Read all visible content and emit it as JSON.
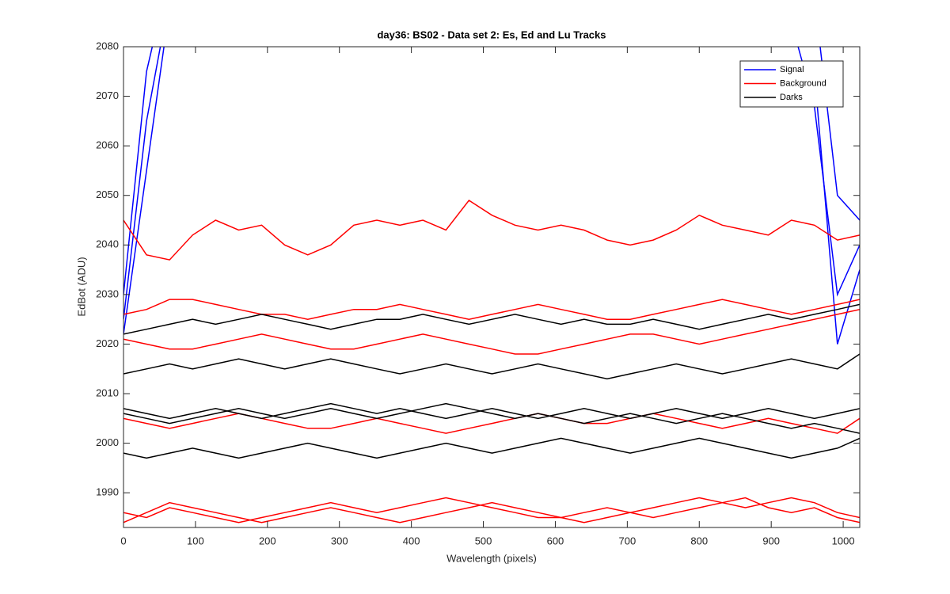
{
  "chart_data": {
    "type": "line",
    "title": "day36: BS02 - Data set 2: Es, Ed and Lu Tracks",
    "x_label": "Wavelength (pixels)",
    "y_label": "EdBot (ADU)",
    "x": [
      0,
      32,
      64,
      96,
      128,
      160,
      192,
      224,
      256,
      288,
      320,
      352,
      384,
      416,
      448,
      480,
      512,
      544,
      576,
      608,
      640,
      672,
      704,
      736,
      768,
      800,
      832,
      864,
      896,
      928,
      960,
      992,
      1023
    ],
    "xlim": [
      0,
      1023
    ],
    "ylim": [
      1983,
      2080
    ],
    "xticks": [
      0,
      100,
      200,
      300,
      400,
      500,
      600,
      700,
      800,
      900,
      1000
    ],
    "yticks": [
      1990,
      2000,
      2010,
      2020,
      2030,
      2040,
      2050,
      2060,
      2070,
      2080
    ],
    "legend_position": "upper right",
    "series": [
      {
        "name": "Signal",
        "color": "#0000ff",
        "lines": [
          [
            2025,
            2065,
            2090,
            null,
            null,
            null,
            null,
            null,
            null,
            null,
            null,
            null,
            null,
            null,
            null,
            null,
            null,
            null,
            null,
            null,
            null,
            null,
            null,
            null,
            null,
            null,
            null,
            null,
            null,
            2085,
            2068,
            2030,
            2040
          ],
          [
            2030,
            2075,
            2095,
            null,
            null,
            null,
            null,
            null,
            null,
            null,
            null,
            null,
            null,
            null,
            null,
            null,
            null,
            null,
            null,
            null,
            null,
            null,
            null,
            null,
            null,
            null,
            null,
            null,
            null,
            null,
            2090,
            2050,
            2045
          ],
          [
            2022,
            2055,
            2088,
            null,
            null,
            null,
            null,
            null,
            null,
            null,
            null,
            null,
            null,
            null,
            null,
            null,
            null,
            null,
            null,
            null,
            null,
            null,
            null,
            null,
            null,
            null,
            null,
            null,
            null,
            null,
            2075,
            2020,
            2035
          ]
        ]
      },
      {
        "name": "Background",
        "color": "#ff0000",
        "lines": [
          [
            2045,
            2038,
            2037,
            2042,
            2045,
            2043,
            2044,
            2040,
            2038,
            2040,
            2044,
            2045,
            2044,
            2045,
            2043,
            2049,
            2046,
            2044,
            2043,
            2044,
            2043,
            2041,
            2040,
            2041,
            2043,
            2046,
            2044,
            2043,
            2042,
            2045,
            2044,
            2041,
            2042
          ],
          [
            2026,
            2027,
            2029,
            2029,
            2028,
            2027,
            2026,
            2026,
            2025,
            2026,
            2027,
            2027,
            2028,
            2027,
            2026,
            2025,
            2026,
            2027,
            2028,
            2027,
            2026,
            2025,
            2025,
            2026,
            2027,
            2028,
            2029,
            2028,
            2027,
            2026,
            2027,
            2028,
            2029
          ],
          [
            2021,
            2020,
            2019,
            2019,
            2020,
            2021,
            2022,
            2021,
            2020,
            2019,
            2019,
            2020,
            2021,
            2022,
            2021,
            2020,
            2019,
            2018,
            2018,
            2019,
            2020,
            2021,
            2022,
            2022,
            2021,
            2020,
            2021,
            2022,
            2023,
            2024,
            2025,
            2026,
            2027
          ],
          [
            2005,
            2004,
            2003,
            2004,
            2005,
            2006,
            2005,
            2004,
            2003,
            2003,
            2004,
            2005,
            2004,
            2003,
            2002,
            2003,
            2004,
            2005,
            2006,
            2005,
            2004,
            2004,
            2005,
            2006,
            2005,
            2004,
            2003,
            2004,
            2005,
            2004,
            2003,
            2002,
            2005
          ],
          [
            1986,
            1985,
            1987,
            1986,
            1985,
            1984,
            1985,
            1986,
            1987,
            1988,
            1987,
            1986,
            1987,
            1988,
            1989,
            1988,
            1987,
            1986,
            1985,
            1985,
            1986,
            1987,
            1986,
            1987,
            1988,
            1989,
            1988,
            1987,
            1988,
            1989,
            1988,
            1986,
            1985
          ],
          [
            1984,
            1986,
            1988,
            1987,
            1986,
            1985,
            1984,
            1985,
            1986,
            1987,
            1986,
            1985,
            1984,
            1985,
            1986,
            1987,
            1988,
            1987,
            1986,
            1985,
            1984,
            1985,
            1986,
            1985,
            1986,
            1987,
            1988,
            1989,
            1987,
            1986,
            1987,
            1985,
            1984
          ]
        ]
      },
      {
        "name": "Darks",
        "color": "#000000",
        "lines": [
          [
            2022,
            2023,
            2024,
            2025,
            2024,
            2025,
            2026,
            2025,
            2024,
            2023,
            2024,
            2025,
            2025,
            2026,
            2025,
            2024,
            2025,
            2026,
            2025,
            2024,
            2025,
            2024,
            2024,
            2025,
            2024,
            2023,
            2024,
            2025,
            2026,
            2025,
            2026,
            2027,
            2028
          ],
          [
            2014,
            2015,
            2016,
            2015,
            2016,
            2017,
            2016,
            2015,
            2016,
            2017,
            2016,
            2015,
            2014,
            2015,
            2016,
            2015,
            2014,
            2015,
            2016,
            2015,
            2014,
            2013,
            2014,
            2015,
            2016,
            2015,
            2014,
            2015,
            2016,
            2017,
            2016,
            2015,
            2018
          ],
          [
            2007,
            2006,
            2005,
            2006,
            2007,
            2006,
            2005,
            2006,
            2007,
            2008,
            2007,
            2006,
            2007,
            2006,
            2005,
            2006,
            2007,
            2006,
            2005,
            2006,
            2007,
            2006,
            2005,
            2006,
            2007,
            2006,
            2005,
            2006,
            2007,
            2006,
            2005,
            2006,
            2007
          ],
          [
            2006,
            2005,
            2004,
            2005,
            2006,
            2007,
            2006,
            2005,
            2006,
            2007,
            2006,
            2005,
            2006,
            2007,
            2008,
            2007,
            2006,
            2005,
            2006,
            2005,
            2004,
            2005,
            2006,
            2005,
            2004,
            2005,
            2006,
            2005,
            2004,
            2003,
            2004,
            2003,
            2002
          ],
          [
            1998,
            1997,
            1998,
            1999,
            1998,
            1997,
            1998,
            1999,
            2000,
            1999,
            1998,
            1997,
            1998,
            1999,
            2000,
            1999,
            1998,
            1999,
            2000,
            2001,
            2000,
            1999,
            1998,
            1999,
            2000,
            2001,
            2000,
            1999,
            1998,
            1997,
            1998,
            1999,
            2001
          ]
        ]
      }
    ]
  }
}
